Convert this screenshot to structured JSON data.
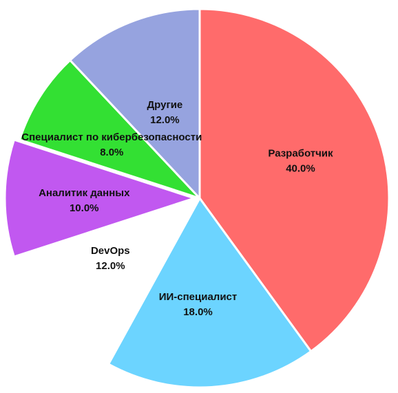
{
  "chart_data": {
    "type": "pie",
    "title": "",
    "legend": "none",
    "start_angle_deg": 0,
    "direction": "clockwise",
    "slices": [
      {
        "label": "Разработчик",
        "value": 40.0,
        "value_label": "40.0%",
        "color": "#ff6b6b"
      },
      {
        "label": "ИИ-специалист",
        "value": 18.0,
        "value_label": "18.0%",
        "color": "#6cd4ff"
      },
      {
        "label": "DevOps",
        "value": 12.0,
        "value_label": "12.0%",
        "color": "#ffffff"
      },
      {
        "label": "Аналитик данных",
        "value": 10.0,
        "value_label": "10.0%",
        "color": "#c158f0"
      },
      {
        "label": "Специалист по кибербезопасности",
        "value": 8.0,
        "value_label": "8.0%",
        "color": "#33e033"
      },
      {
        "label": "Другие",
        "value": 12.0,
        "value_label": "12.0%",
        "color": "#96a3df"
      }
    ]
  }
}
